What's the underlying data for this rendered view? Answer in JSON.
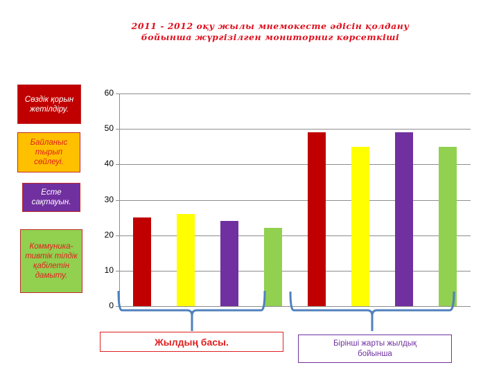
{
  "title": "2011 - 2012 оқу жылы мнемокесте әдісін қолдану бойынша жүргізілген мониторниг көрсеткіші",
  "legend": [
    {
      "label": "Сөздік қорын жетілдіру.",
      "bg": "#c00000",
      "text_color": "#ffffff"
    },
    {
      "label": "Байланыс тырып сөйлеуі.",
      "bg": "#ffc000",
      "text_color": "#e02020"
    },
    {
      "label": "Есте сақтауын.",
      "bg": "#7030a0",
      "text_color": "#ffffff"
    },
    {
      "label": "Коммуника-тивтік тілдік қабілетін дамыту.",
      "bg": "#92d050",
      "text_color": "#e02020"
    }
  ],
  "captions": {
    "group1": "Жылдың басы.",
    "group2": "Бірінші жарты жылдық бойынша"
  },
  "chart_data": {
    "type": "bar",
    "title": "2011 - 2012 оқу жылы мнемокесте әдісін қолдану бойынша жүргізілген мониторниг көрсеткіші",
    "categories": [
      "Жылдың басы.",
      "Бірінші жарты жылдық бойынша"
    ],
    "series": [
      {
        "name": "Сөздік қорын жетілдіру.",
        "color": "#c00000",
        "values": [
          25,
          49
        ]
      },
      {
        "name": "Байланыс тырып сөйлеуі.",
        "color": "#ffff00",
        "values": [
          26,
          45
        ]
      },
      {
        "name": "Есте сақтауын.",
        "color": "#7030a0",
        "values": [
          24,
          49
        ]
      },
      {
        "name": "Коммуника-тивтік тілдік қабілетін дамыту.",
        "color": "#92d050",
        "values": [
          22,
          45
        ]
      }
    ],
    "yticks": [
      "0",
      "10",
      "20",
      "30",
      "40",
      "50",
      "60"
    ],
    "ylim": [
      0,
      60
    ],
    "xlabel": "",
    "ylabel": "",
    "grid": true,
    "legend_position": "left"
  }
}
